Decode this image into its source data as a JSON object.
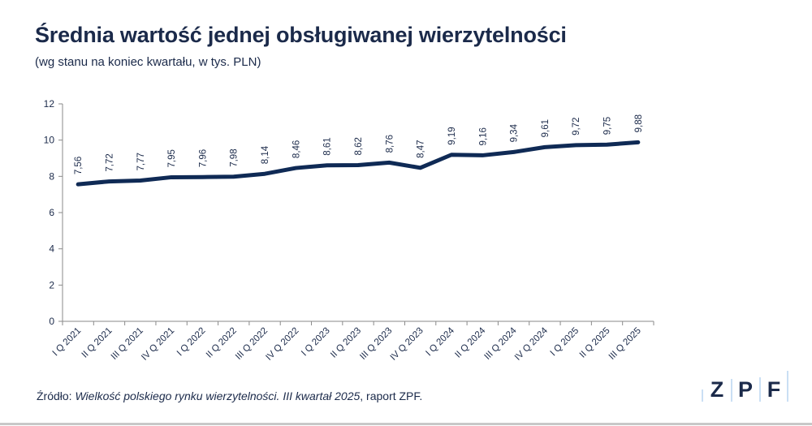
{
  "chart_data": {
    "type": "line",
    "title": "Średnia wartość jednej obsługiwanej wierzytelności",
    "subtitle": "(wg stanu na koniec kwartału, w tys. PLN)",
    "categories": [
      "I Q 2021",
      "II Q 2021",
      "III Q 2021",
      "IV Q 2021",
      "I Q 2022",
      "II Q 2022",
      "III Q 2022",
      "IV Q 2022",
      "I Q 2023",
      "II Q 2023",
      "III Q 2023",
      "IV Q 2023",
      "I Q 2024",
      "II Q 2024",
      "III Q 2024",
      "IV Q 2024",
      "I Q 2025",
      "II Q 2025",
      "III Q 2025"
    ],
    "values": [
      7.56,
      7.72,
      7.77,
      7.95,
      7.96,
      7.98,
      8.14,
      8.46,
      8.61,
      8.62,
      8.76,
      8.47,
      9.19,
      9.16,
      9.34,
      9.61,
      9.72,
      9.75,
      9.88
    ],
    "data_labels": [
      "7,56",
      "7,72",
      "7,77",
      "7,95",
      "7,96",
      "7,98",
      "8,14",
      "8,46",
      "8,61",
      "8,62",
      "8,76",
      "8,47",
      "9,19",
      "9,16",
      "9,34",
      "9,61",
      "9,72",
      "9,75",
      "9,88"
    ],
    "yticks": [
      0,
      2,
      4,
      6,
      8,
      10,
      12
    ],
    "ylim": [
      0,
      12
    ],
    "grid": false,
    "line_color": "#0f2a55"
  },
  "source": {
    "prefix": "Źródło: ",
    "italic": "Wielkość polskiego rynku wierzytelności. III kwartał 2025",
    "suffix": ", raport ZPF."
  },
  "logo": {
    "letters": [
      "Z",
      "P",
      "F"
    ],
    "color": "#1b2a4a",
    "accent": "#b8d4f0"
  }
}
